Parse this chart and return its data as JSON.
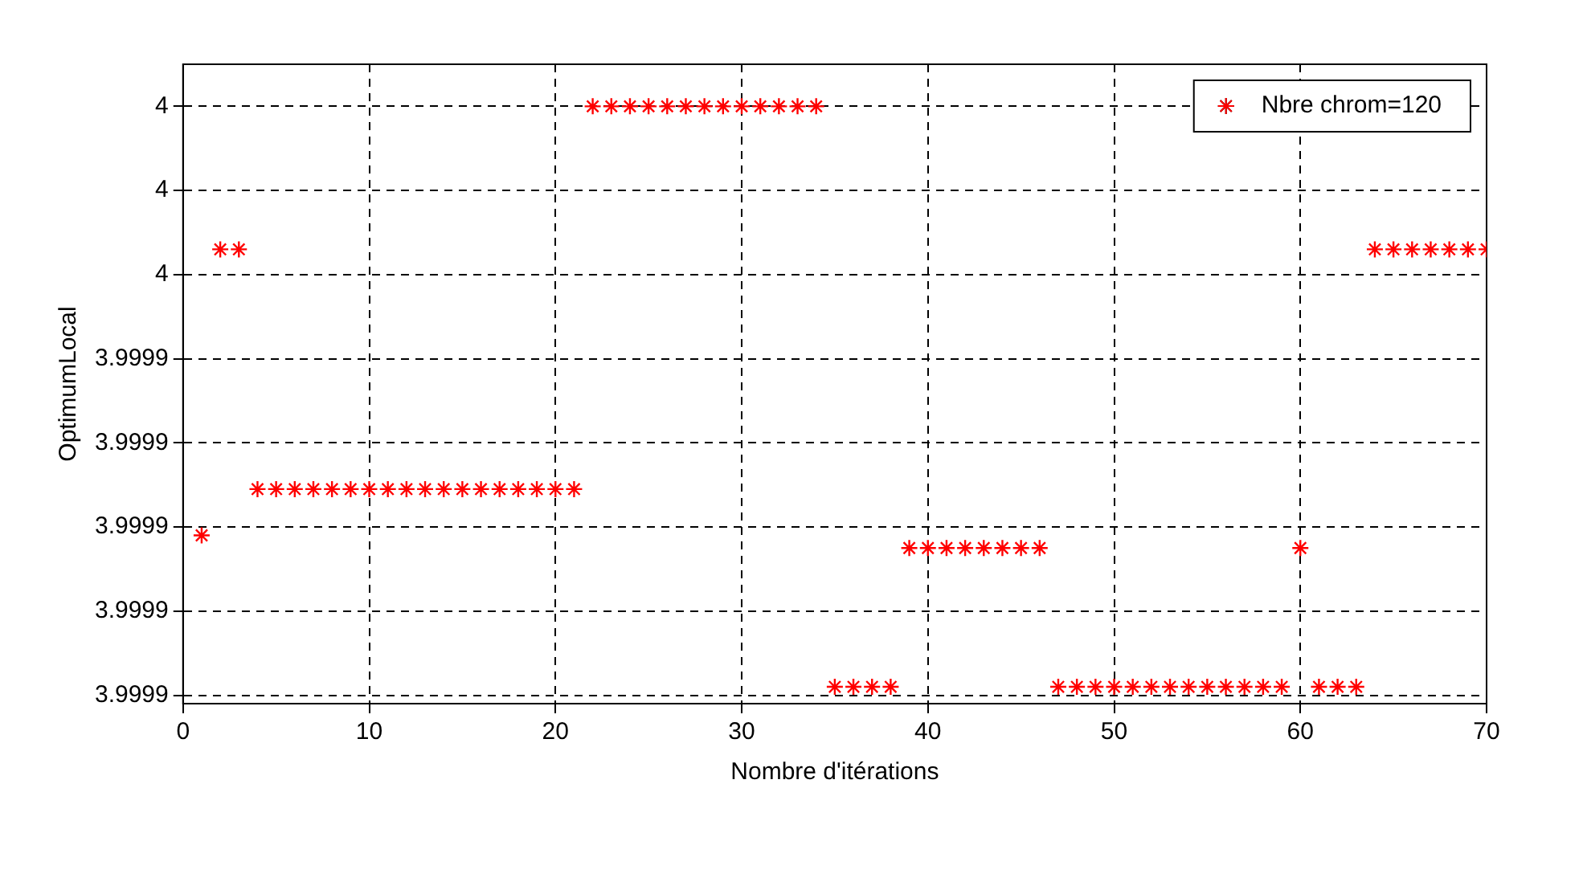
{
  "chart_data": {
    "type": "scatter",
    "xlabel": "Nombre d'itérations",
    "ylabel": "OptimumLocal",
    "x": [
      1,
      2,
      3,
      4,
      5,
      6,
      7,
      8,
      9,
      10,
      11,
      12,
      13,
      14,
      15,
      16,
      17,
      18,
      19,
      20,
      21,
      22,
      23,
      24,
      25,
      26,
      27,
      28,
      29,
      30,
      31,
      32,
      33,
      34,
      35,
      36,
      37,
      38,
      39,
      40,
      41,
      42,
      43,
      44,
      45,
      46,
      47,
      48,
      49,
      50,
      51,
      52,
      53,
      54,
      55,
      56,
      57,
      58,
      59,
      60,
      61,
      62,
      63,
      64,
      65,
      66,
      67,
      68,
      69,
      70
    ],
    "series": [
      {
        "name": "Nbre chrom=120",
        "color": "#ff0000",
        "values": [
          3.999898,
          3.999966,
          3.999966,
          3.999909,
          3.999909,
          3.999909,
          3.999909,
          3.999909,
          3.999909,
          3.999909,
          3.999909,
          3.999909,
          3.999909,
          3.999909,
          3.999909,
          3.999909,
          3.999909,
          3.999909,
          3.999909,
          3.999909,
          3.999909,
          4.0,
          4.0,
          4.0,
          4.0,
          4.0,
          4.0,
          4.0,
          4.0,
          4.0,
          4.0,
          4.0,
          4.0,
          4.0,
          3.999862,
          3.999862,
          3.999862,
          3.999862,
          3.999895,
          3.999895,
          3.999895,
          3.999895,
          3.999895,
          3.999895,
          3.999895,
          3.999895,
          3.999862,
          3.999862,
          3.999862,
          3.999862,
          3.999862,
          3.999862,
          3.999862,
          3.999862,
          3.999862,
          3.999862,
          3.999862,
          3.999862,
          3.999862,
          3.999895,
          3.999862,
          3.999862,
          3.999862,
          3.999966,
          3.999966,
          3.999966,
          3.999966,
          3.999966,
          3.999966,
          3.999966
        ]
      }
    ],
    "xlim": [
      0,
      70
    ],
    "xticks": [
      0,
      10,
      20,
      30,
      40,
      50,
      60,
      70
    ],
    "ylim": [
      3.999858,
      4.00001
    ],
    "yticks": [
      {
        "value": 3.99986,
        "label": "3.9999"
      },
      {
        "value": 3.99988,
        "label": "3.9999"
      },
      {
        "value": 3.9999,
        "label": "3.9999"
      },
      {
        "value": 3.99992,
        "label": "3.9999"
      },
      {
        "value": 3.99994,
        "label": "3.9999"
      },
      {
        "value": 3.99996,
        "label": "4"
      },
      {
        "value": 3.99998,
        "label": "4"
      },
      {
        "value": 4.0,
        "label": "4"
      }
    ],
    "grid": true,
    "legend": "top right",
    "marker": "cross"
  }
}
